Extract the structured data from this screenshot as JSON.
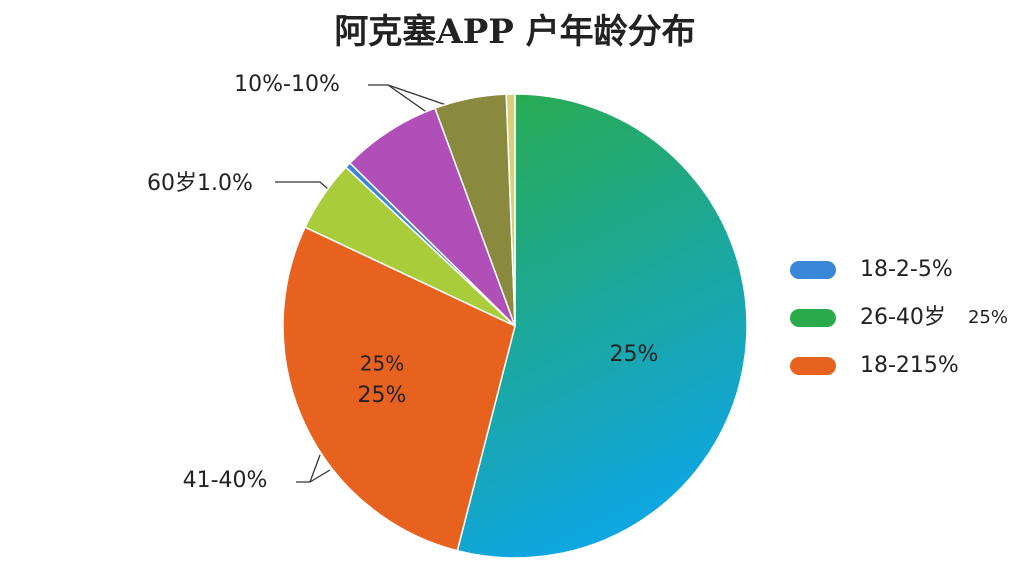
{
  "chart_data": {
    "type": "pie",
    "title": "阿克塞APP 户年龄分布",
    "values": [
      54,
      28,
      5,
      0.4,
      7,
      5,
      0.6
    ],
    "colors": [
      "#1aa59e",
      "#e8621f",
      "#a9cc3a",
      "#3a86d8",
      "#b04fb8",
      "#8a8a3e",
      "#d8cf7a"
    ],
    "legend": [
      {
        "name": "18-2-5%",
        "color": "#3a86d8"
      },
      {
        "name": "26-40岁",
        "color": "#2aaa4a"
      },
      {
        "name": "18-215%",
        "color": "#e8621f"
      }
    ],
    "annotations": [
      "10%-10%",
      "60岁1.0%",
      "41-40%",
      "25%",
      "25%",
      "25%",
      "25%"
    ]
  }
}
